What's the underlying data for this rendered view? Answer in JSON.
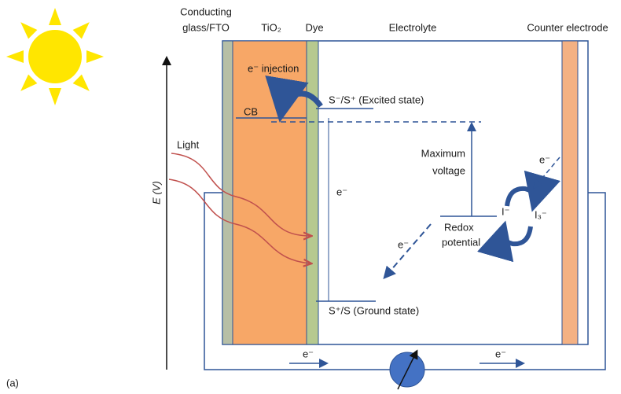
{
  "header": {
    "conducting_glass": [
      "Conducting",
      "glass/FTO"
    ],
    "tio2": "TiO₂",
    "dye": "Dye",
    "electrolyte": "Electrolyte",
    "counter_electrode": "Counter electrode"
  },
  "labels": {
    "injection": "e⁻ injection",
    "cb": "CB",
    "excited_state": "S⁻/S⁺ (Excited state)",
    "ground_state": "S⁺/S (Ground state)",
    "light": "Light",
    "energy_axis": "E (V)",
    "max_voltage": [
      "Maximum",
      "voltage"
    ],
    "redox": [
      "Redox",
      "potential"
    ],
    "iodide": "I⁻",
    "triiodide": "I₃⁻",
    "electron_dye": "e⁻",
    "electron_diffusion": "e⁻",
    "electron_counter": "e⁻",
    "electron_bottom_left": "e⁻",
    "electron_bottom_right": "e⁻",
    "panel": "(a)"
  }
}
